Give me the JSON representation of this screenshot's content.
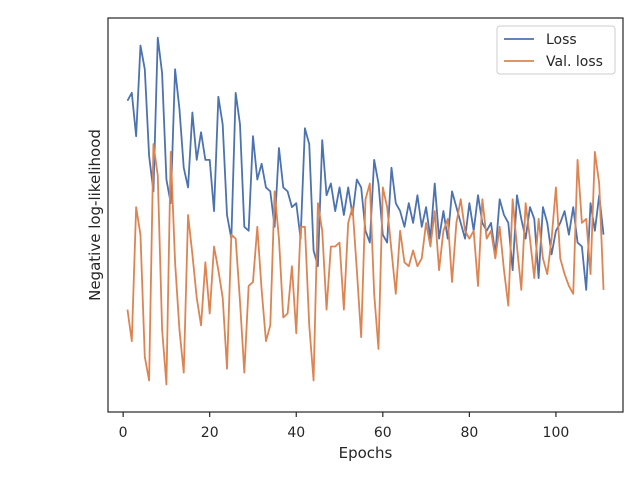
{
  "chart_data": {
    "type": "line",
    "title": "",
    "xlabel": "Epochs",
    "ylabel": "Negative log-likelihood",
    "xlim": [
      -3.5,
      115.5
    ],
    "ylim": [
      0.0,
      1.0
    ],
    "x_ticks": [
      0,
      20,
      40,
      60,
      80,
      100
    ],
    "y_ticks_shown": false,
    "grid": false,
    "legend_position": "top-right",
    "series": [
      {
        "name": "Loss",
        "color": "#4c72b0",
        "x": [
          1,
          2,
          3,
          4,
          5,
          6,
          7,
          8,
          9,
          10,
          11,
          12,
          13,
          14,
          15,
          16,
          17,
          18,
          19,
          20,
          21,
          22,
          23,
          24,
          25,
          26,
          27,
          28,
          29,
          30,
          31,
          32,
          33,
          34,
          35,
          36,
          37,
          38,
          39,
          40,
          41,
          42,
          43,
          44,
          45,
          46,
          47,
          48,
          49,
          50,
          51,
          52,
          53,
          54,
          55,
          56,
          57,
          58,
          59,
          60,
          61,
          62,
          63,
          64,
          65,
          66,
          67,
          68,
          69,
          70,
          71,
          72,
          73,
          74,
          75,
          76,
          77,
          78,
          79,
          80,
          81,
          82,
          83,
          84,
          85,
          86,
          87,
          88,
          89,
          90,
          91,
          92,
          93,
          94,
          95,
          96,
          97,
          98,
          99,
          100,
          101,
          102,
          103,
          104,
          105,
          106,
          107,
          108,
          109,
          110,
          111
        ],
        "values": [
          0.79,
          0.81,
          0.7,
          0.93,
          0.87,
          0.65,
          0.56,
          0.95,
          0.86,
          0.59,
          0.53,
          0.87,
          0.77,
          0.62,
          0.57,
          0.76,
          0.64,
          0.71,
          0.64,
          0.64,
          0.51,
          0.8,
          0.73,
          0.5,
          0.44,
          0.81,
          0.73,
          0.47,
          0.46,
          0.7,
          0.59,
          0.63,
          0.57,
          0.56,
          0.47,
          0.67,
          0.57,
          0.56,
          0.52,
          0.53,
          0.44,
          0.72,
          0.68,
          0.41,
          0.37,
          0.69,
          0.55,
          0.58,
          0.51,
          0.57,
          0.5,
          0.57,
          0.5,
          0.59,
          0.57,
          0.46,
          0.43,
          0.64,
          0.58,
          0.45,
          0.43,
          0.62,
          0.53,
          0.51,
          0.47,
          0.53,
          0.48,
          0.55,
          0.47,
          0.52,
          0.44,
          0.58,
          0.44,
          0.51,
          0.44,
          0.56,
          0.52,
          0.48,
          0.44,
          0.53,
          0.46,
          0.55,
          0.48,
          0.46,
          0.48,
          0.4,
          0.54,
          0.5,
          0.48,
          0.36,
          0.55,
          0.49,
          0.44,
          0.52,
          0.49,
          0.34,
          0.52,
          0.48,
          0.4,
          0.46,
          0.48,
          0.51,
          0.45,
          0.52,
          0.43,
          0.42,
          0.31,
          0.53,
          0.46,
          0.55,
          0.45
        ]
      },
      {
        "name": "Val. loss",
        "color": "#dd8452",
        "x": [
          1,
          2,
          3,
          4,
          5,
          6,
          7,
          8,
          9,
          10,
          11,
          12,
          13,
          14,
          15,
          16,
          17,
          18,
          19,
          20,
          21,
          22,
          23,
          24,
          25,
          26,
          27,
          28,
          29,
          30,
          31,
          32,
          33,
          34,
          35,
          36,
          37,
          38,
          39,
          40,
          41,
          42,
          43,
          44,
          45,
          46,
          47,
          48,
          49,
          50,
          51,
          52,
          53,
          54,
          55,
          56,
          57,
          58,
          59,
          60,
          61,
          62,
          63,
          64,
          65,
          66,
          67,
          68,
          69,
          70,
          71,
          72,
          73,
          74,
          75,
          76,
          77,
          78,
          79,
          80,
          81,
          82,
          83,
          84,
          85,
          86,
          87,
          88,
          89,
          90,
          91,
          92,
          93,
          94,
          95,
          96,
          97,
          98,
          99,
          100,
          101,
          102,
          103,
          104,
          105,
          106,
          107,
          108,
          109,
          110,
          111
        ],
        "values": [
          0.26,
          0.18,
          0.52,
          0.45,
          0.14,
          0.08,
          0.68,
          0.6,
          0.21,
          0.07,
          0.66,
          0.38,
          0.21,
          0.1,
          0.5,
          0.4,
          0.29,
          0.22,
          0.38,
          0.25,
          0.42,
          0.36,
          0.29,
          0.11,
          0.45,
          0.44,
          0.28,
          0.1,
          0.32,
          0.33,
          0.47,
          0.31,
          0.18,
          0.22,
          0.56,
          0.44,
          0.24,
          0.25,
          0.37,
          0.2,
          0.47,
          0.47,
          0.22,
          0.08,
          0.53,
          0.46,
          0.26,
          0.42,
          0.42,
          0.43,
          0.26,
          0.48,
          0.52,
          0.36,
          0.19,
          0.54,
          0.58,
          0.3,
          0.16,
          0.57,
          0.52,
          0.41,
          0.3,
          0.46,
          0.38,
          0.37,
          0.41,
          0.37,
          0.39,
          0.48,
          0.42,
          0.51,
          0.36,
          0.46,
          0.49,
          0.33,
          0.48,
          0.54,
          0.46,
          0.44,
          0.46,
          0.32,
          0.54,
          0.44,
          0.46,
          0.39,
          0.47,
          0.36,
          0.27,
          0.54,
          0.42,
          0.31,
          0.53,
          0.44,
          0.34,
          0.49,
          0.39,
          0.35,
          0.44,
          0.57,
          0.39,
          0.35,
          0.32,
          0.3,
          0.64,
          0.48,
          0.49,
          0.35,
          0.66,
          0.58,
          0.31
        ]
      }
    ]
  }
}
